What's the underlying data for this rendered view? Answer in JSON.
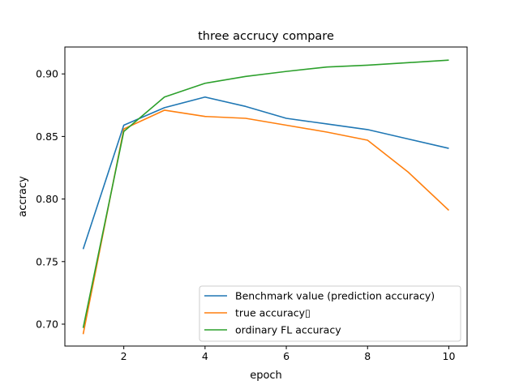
{
  "chart_data": {
    "type": "line",
    "title": "three accrucy compare",
    "xlabel": "epoch",
    "ylabel": "accracy",
    "x": [
      1,
      2,
      3,
      4,
      5,
      6,
      7,
      8,
      9,
      10
    ],
    "xlim": [
      0.55,
      10.45
    ],
    "ylim": [
      0.6825,
      0.9215
    ],
    "xticks": [
      2,
      4,
      6,
      8,
      10
    ],
    "yticks": [
      0.7,
      0.75,
      0.8,
      0.85,
      0.9
    ],
    "ytick_labels": [
      "0.70",
      "0.75",
      "0.80",
      "0.85",
      "0.90"
    ],
    "grid": false,
    "legend_position": "lower-right",
    "series": [
      {
        "name": "Benchmark value (prediction accuracy)",
        "color": "#1f77b4",
        "values": [
          0.76,
          0.859,
          0.873,
          0.8815,
          0.874,
          0.8645,
          0.86,
          0.8555,
          0.848,
          0.8405
        ]
      },
      {
        "name": "true accuracy▯",
        "color": "#ff7f0e",
        "values": [
          0.692,
          0.856,
          0.871,
          0.866,
          0.8645,
          0.859,
          0.8535,
          0.847,
          0.8215,
          0.791
        ]
      },
      {
        "name": "ordinary FL accuracy",
        "color": "#2ca02c",
        "values": [
          0.697,
          0.854,
          0.8815,
          0.8925,
          0.898,
          0.902,
          0.9055,
          0.907,
          0.909,
          0.911
        ]
      }
    ]
  }
}
